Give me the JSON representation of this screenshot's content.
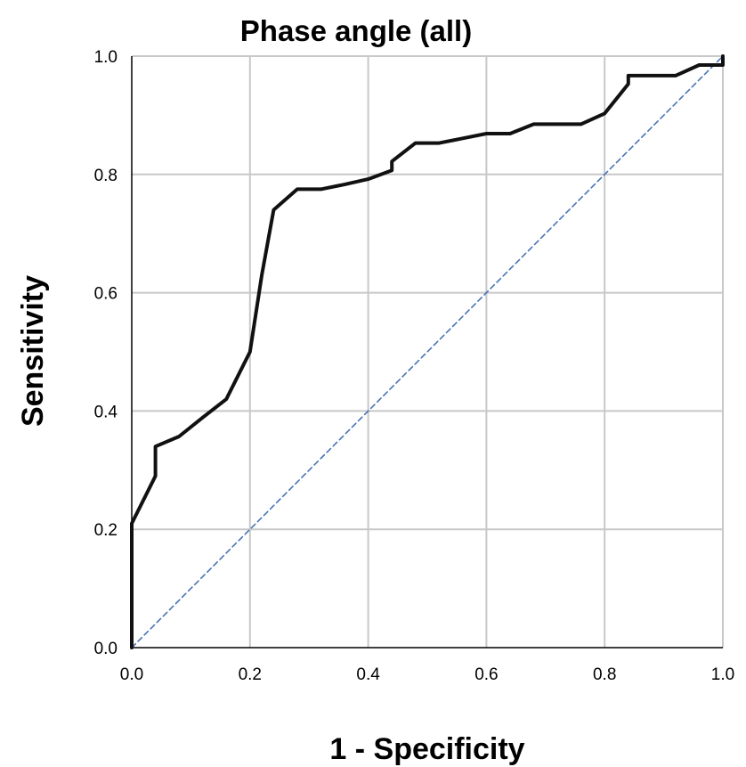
{
  "chart_data": {
    "type": "line",
    "title": "Phase angle (all)",
    "xlabel": "1 - Specificity",
    "ylabel": "Sensitivity",
    "xlim": [
      0.0,
      1.0
    ],
    "ylim": [
      0.0,
      1.0
    ],
    "x_ticks": [
      "0.0",
      "0.2",
      "0.4",
      "0.6",
      "0.8",
      "1.0"
    ],
    "y_ticks": [
      "0.0",
      "0.2",
      "0.4",
      "0.6",
      "0.8",
      "1.0"
    ],
    "grid": true,
    "legend": "none",
    "series": [
      {
        "color": "#111111",
        "style": "solid",
        "x": [
          0.0,
          0.0,
          0.0,
          0.04,
          0.04,
          0.08,
          0.12,
          0.16,
          0.2,
          0.22,
          0.24,
          0.28,
          0.32,
          0.36,
          0.4,
          0.44,
          0.44,
          0.48,
          0.52,
          0.56,
          0.6,
          0.64,
          0.68,
          0.72,
          0.76,
          0.8,
          0.84,
          0.84,
          0.88,
          0.92,
          0.96,
          1.0,
          1.0
        ],
        "y": [
          0.0,
          0.15,
          0.21,
          0.29,
          0.34,
          0.357,
          0.389,
          0.42,
          0.5,
          0.63,
          0.74,
          0.775,
          0.775,
          0.783,
          0.792,
          0.807,
          0.822,
          0.853,
          0.853,
          0.861,
          0.869,
          0.869,
          0.885,
          0.885,
          0.885,
          0.903,
          0.953,
          0.967,
          0.967,
          0.967,
          0.985,
          0.985,
          1.0
        ]
      },
      {
        "color": "#4a73b5",
        "style": "dashed",
        "x": [
          0.0,
          1.0
        ],
        "y": [
          0.0,
          1.0
        ]
      }
    ]
  }
}
